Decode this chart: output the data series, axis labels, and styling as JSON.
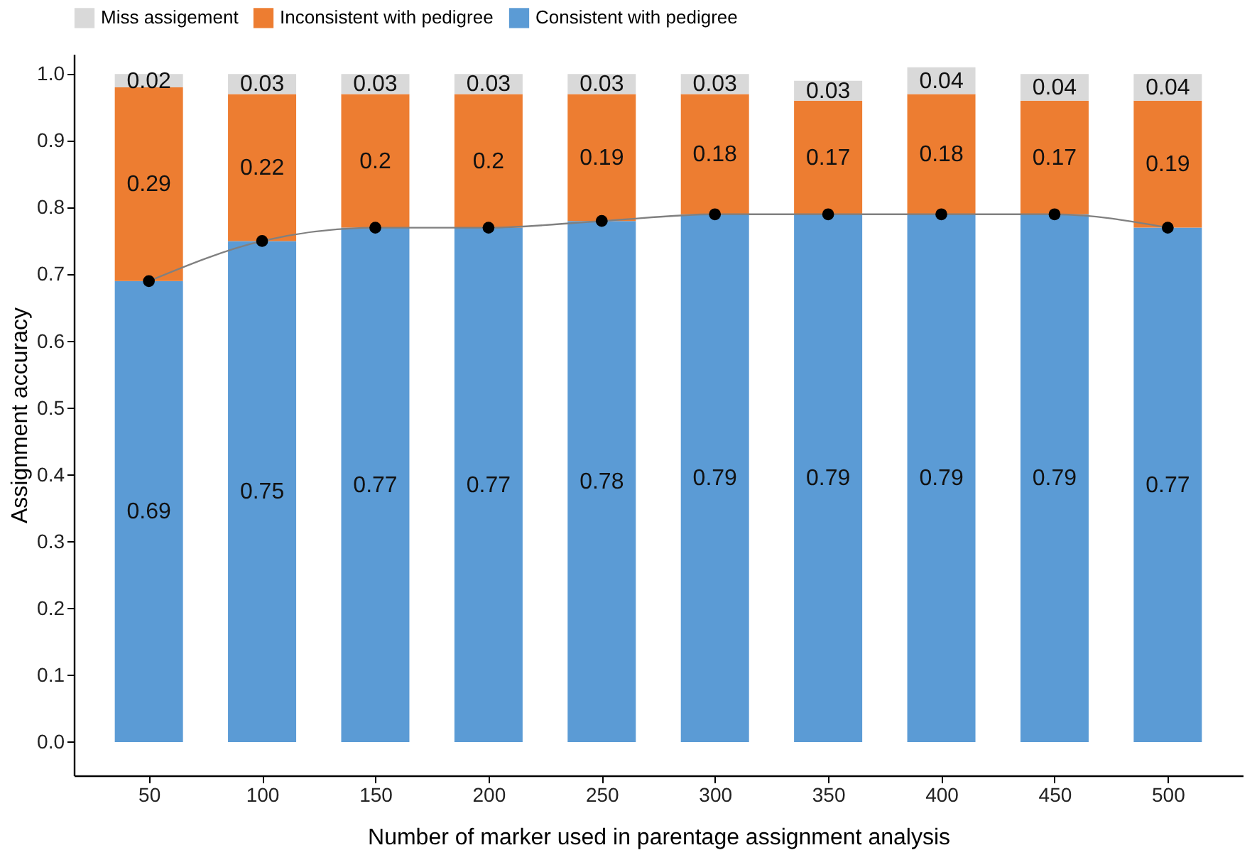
{
  "chart_data": {
    "type": "bar",
    "stacked": true,
    "xlabel": "Number of marker used in parentage assignment analysis",
    "ylabel": "Assignment accuracy",
    "categories": [
      "50",
      "100",
      "150",
      "200",
      "250",
      "300",
      "350",
      "400",
      "450",
      "500"
    ],
    "series": [
      {
        "name": "Consistent with pedigree",
        "color": "#5b9bd5",
        "values": [
          0.69,
          0.75,
          0.77,
          0.77,
          0.78,
          0.79,
          0.79,
          0.79,
          0.79,
          0.77
        ],
        "value_labels": [
          "0.69",
          "0.75",
          "0.77",
          "0.77",
          "0.78",
          "0.79",
          "0.79",
          "0.79",
          "0.79",
          "0.77"
        ]
      },
      {
        "name": "Inconsistent with pedigree",
        "color": "#ed7d31",
        "values": [
          0.29,
          0.22,
          0.2,
          0.2,
          0.19,
          0.18,
          0.17,
          0.18,
          0.17,
          0.19
        ],
        "value_labels": [
          "0.29",
          "0.22",
          "0.2",
          "0.2",
          "0.19",
          "0.18",
          "0.17",
          "0.18",
          "0.17",
          "0.19"
        ]
      },
      {
        "name": "Miss assigement",
        "color": "#d9d9d9",
        "values": [
          0.02,
          0.03,
          0.03,
          0.03,
          0.03,
          0.03,
          0.03,
          0.04,
          0.04,
          0.04
        ],
        "value_labels": [
          "0.02",
          "0.03",
          "0.03",
          "0.03",
          "0.03",
          "0.03",
          "0.03",
          "0.04",
          "0.04",
          "0.04"
        ]
      },
      {
        "type": "line",
        "color": "#808080",
        "values": [
          0.69,
          0.75,
          0.77,
          0.77,
          0.78,
          0.79,
          0.79,
          0.79,
          0.79,
          0.77
        ]
      },
      {
        "type": "scatter",
        "color": "#000000",
        "marker": "circle",
        "values": [
          0.69,
          0.75,
          0.77,
          0.77,
          0.78,
          0.79,
          0.79,
          0.79,
          0.79,
          0.77
        ]
      }
    ],
    "ylim": [
      -0.05,
      1.03
    ],
    "yticks": [
      {
        "value": 0,
        "label": "0.0"
      },
      0.1,
      0.2,
      0.3,
      0.4,
      0.5,
      0.6,
      0.7,
      0.8,
      0.9,
      {
        "value": 1,
        "label": "1.0"
      }
    ],
    "legend": "top",
    "grid": false
  }
}
